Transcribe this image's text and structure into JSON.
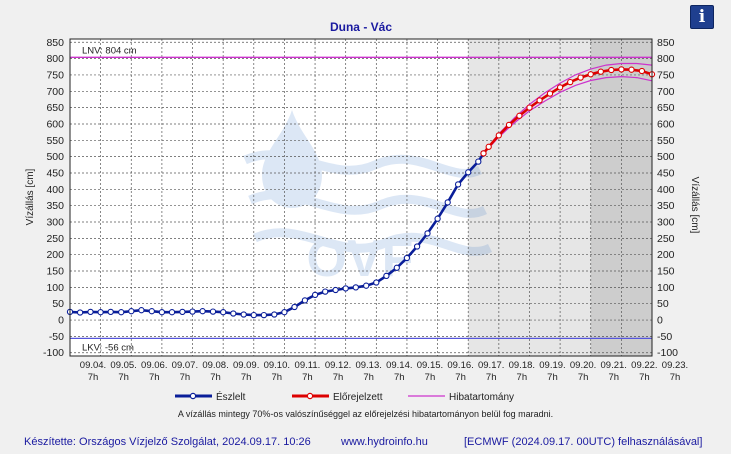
{
  "chart_data": {
    "type": "line",
    "title": "Duna - Vác",
    "ylabel": "Vízállás [cm]",
    "ylabel_right": "Vízállás [cm]",
    "ylim": [
      -110,
      860
    ],
    "yticks": [
      -100,
      -50,
      0,
      50,
      100,
      150,
      200,
      250,
      300,
      350,
      400,
      450,
      500,
      550,
      600,
      650,
      700,
      750,
      800,
      850
    ],
    "x_day_labels": [
      "09.04.",
      "09.05.",
      "09.06.",
      "09.07.",
      "09.08.",
      "09.09.",
      "09.10.",
      "09.11.",
      "09.12.",
      "09.13.",
      "09.14.",
      "09.15.",
      "09.16.",
      "09.17.",
      "09.18.",
      "09.19.",
      "09.20.",
      "09.21.",
      "09.22.",
      "09.23."
    ],
    "x_hour_label": "7h",
    "xlim_days": [
      0,
      19
    ],
    "shaded_regions": [
      {
        "from": 13,
        "to": 17,
        "color": "#e6e6e6"
      },
      {
        "from": 17,
        "to": 19,
        "color": "#cdcdcd"
      }
    ],
    "thresholds": [
      {
        "label": "LNV: 804 cm",
        "value": 804,
        "color": "#cc33cc"
      },
      {
        "label": "LKV: -56 cm",
        "value": -56,
        "color": "#5555dd"
      }
    ],
    "series": [
      {
        "name": "Észlelt",
        "color": "#0a1e99",
        "points": [
          [
            0,
            25
          ],
          [
            0.33,
            23
          ],
          [
            0.67,
            25
          ],
          [
            1,
            24
          ],
          [
            1.33,
            25
          ],
          [
            1.67,
            24
          ],
          [
            2,
            27
          ],
          [
            2.33,
            30
          ],
          [
            2.67,
            27
          ],
          [
            3,
            24
          ],
          [
            3.33,
            24
          ],
          [
            3.67,
            25
          ],
          [
            4,
            26
          ],
          [
            4.33,
            27
          ],
          [
            4.67,
            26
          ],
          [
            5,
            24
          ],
          [
            5.33,
            20
          ],
          [
            5.67,
            17
          ],
          [
            6,
            15
          ],
          [
            6.33,
            15
          ],
          [
            6.67,
            17
          ],
          [
            7,
            24
          ],
          [
            7.33,
            40
          ],
          [
            7.67,
            60
          ],
          [
            8,
            77
          ],
          [
            8.33,
            87
          ],
          [
            8.67,
            92
          ],
          [
            9,
            97
          ],
          [
            9.33,
            100
          ],
          [
            9.67,
            105
          ],
          [
            10,
            115
          ],
          [
            10.33,
            135
          ],
          [
            10.67,
            160
          ],
          [
            11,
            190
          ],
          [
            11.33,
            225
          ],
          [
            11.67,
            265
          ],
          [
            12,
            310
          ],
          [
            12.33,
            360
          ],
          [
            12.67,
            415
          ],
          [
            13,
            452
          ],
          [
            13.33,
            485
          ],
          [
            13.5,
            510
          ]
        ]
      },
      {
        "name": "Előrejelzett",
        "color": "#dd0000",
        "points": [
          [
            13.5,
            510
          ],
          [
            13.67,
            530
          ],
          [
            14,
            565
          ],
          [
            14.33,
            597
          ],
          [
            14.67,
            625
          ],
          [
            15,
            650
          ],
          [
            15.33,
            672
          ],
          [
            15.67,
            693
          ],
          [
            16,
            712
          ],
          [
            16.33,
            728
          ],
          [
            16.67,
            742
          ],
          [
            17,
            752
          ],
          [
            17.33,
            760
          ],
          [
            17.67,
            765
          ],
          [
            18,
            767
          ],
          [
            18.33,
            766
          ],
          [
            18.67,
            762
          ],
          [
            19,
            752
          ]
        ]
      },
      {
        "name": "Hibatartomány",
        "color": "#cc33cc",
        "upper": [
          [
            13.5,
            512
          ],
          [
            14,
            570
          ],
          [
            14.5,
            618
          ],
          [
            15,
            660
          ],
          [
            15.5,
            695
          ],
          [
            16,
            725
          ],
          [
            16.5,
            750
          ],
          [
            17,
            768
          ],
          [
            17.5,
            780
          ],
          [
            18,
            785
          ],
          [
            18.5,
            785
          ],
          [
            19,
            780
          ]
        ],
        "lower": [
          [
            13.5,
            508
          ],
          [
            14,
            560
          ],
          [
            14.5,
            603
          ],
          [
            15,
            640
          ],
          [
            15.5,
            670
          ],
          [
            16,
            697
          ],
          [
            16.5,
            718
          ],
          [
            17,
            733
          ],
          [
            17.5,
            742
          ],
          [
            18,
            745
          ],
          [
            18.5,
            742
          ],
          [
            19,
            732
          ]
        ]
      }
    ],
    "legend": [
      "Észlelt",
      "Előrejelzett",
      "Hibatartomány"
    ],
    "watermark": "OVF"
  },
  "note": "A vízállás mintegy 70%-os valószínűséggel az előrejelzési hibatartományon belül fog maradni.",
  "footer": {
    "made_by": "Készítette: Országos Vízjelző Szolgálat, 2024.09.17. 10:26",
    "site": "www.hydroinfo.hu",
    "source": "[ECMWF (2024.09.17. 00UTC) felhasználásával]"
  },
  "info_icon": "i"
}
